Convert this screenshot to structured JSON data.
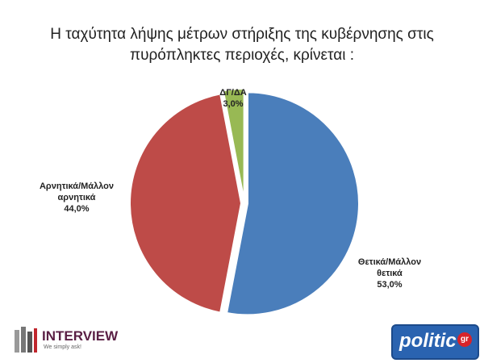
{
  "chart_data": {
    "type": "pie",
    "title": "Η ταχύτητα λήψης μέτρων στήριξης της κυβέρνησης στις πυρόπληκτες περιοχές, κρίνεται :",
    "categories": [
      "Θετικά/Μάλλον θετικά",
      "Αρνητικά/Μάλλον αρνητικά",
      "ΔΓ/ΔΑ"
    ],
    "values": [
      53.0,
      44.0,
      3.0
    ],
    "value_labels": [
      "53,0%",
      "44,0%",
      "3,0%"
    ],
    "colors": [
      "#4a7ebb",
      "#be4b48",
      "#98b954"
    ]
  },
  "footer": {
    "left_logo": "INTERVIEW",
    "left_tagline": "We simply ask!",
    "right_logo": "politic",
    "right_logo_suffix": "gr"
  }
}
